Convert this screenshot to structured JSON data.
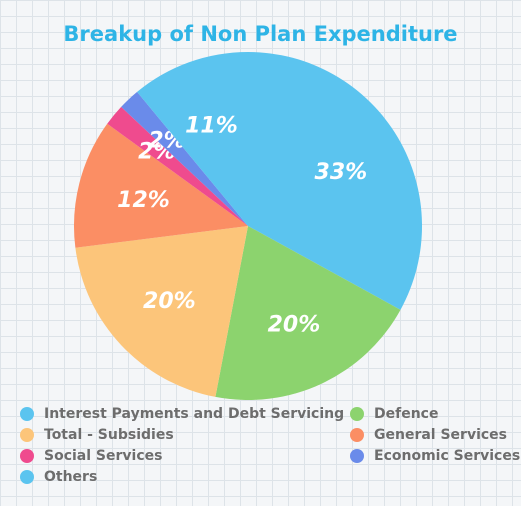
{
  "chart_data": {
    "type": "pie",
    "title": "Breakup of Non Plan Expenditure",
    "slices": [
      {
        "name": "Interest Payments and Debt Servicing",
        "value": 33,
        "label": "33%",
        "color": "#5bc4ef"
      },
      {
        "name": "Defence",
        "value": 20,
        "label": "20%",
        "color": "#8cd36e"
      },
      {
        "name": "Total - Subsidies",
        "value": 20,
        "label": "20%",
        "color": "#fcc57a"
      },
      {
        "name": "General Services",
        "value": 12,
        "label": "12%",
        "color": "#fb8e64"
      },
      {
        "name": "Social Services",
        "value": 2,
        "label": "2%",
        "color": "#ef4b8e"
      },
      {
        "name": "Economic Services",
        "value": 2,
        "label": "2%",
        "color": "#6a8bea"
      },
      {
        "name": "Others",
        "value": 11,
        "label": "11%",
        "color": "#5bc4ef"
      }
    ],
    "legend_position": "bottom"
  }
}
